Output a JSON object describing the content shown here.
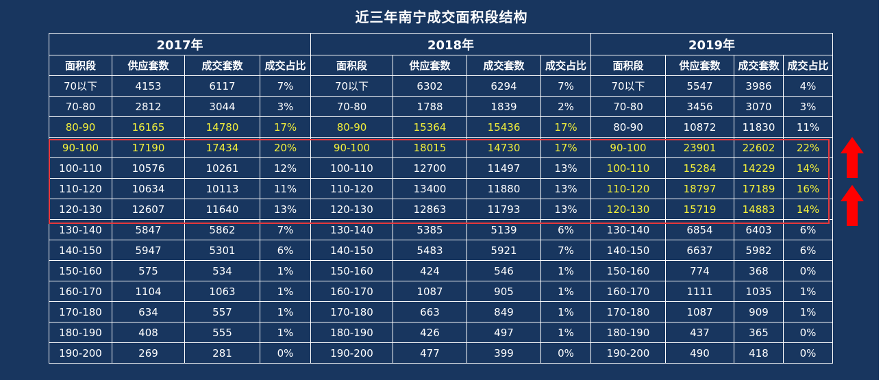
{
  "title": "近三年南宁成交面积段结构",
  "years": [
    "2017年",
    "2018年",
    "2019年"
  ],
  "columns": [
    "面积段",
    "供应套数",
    "成交套数",
    "成交占比"
  ],
  "highlight_color": "#f3f03a",
  "box_color": "#e8383b",
  "background_color": "#18365f",
  "rows": [
    {
      "y2017": [
        "70以下",
        "4153",
        "6117",
        "7%"
      ],
      "y2018": [
        "70以下",
        "6302",
        "6294",
        "7%"
      ],
      "y2019": [
        "70以下",
        "5547",
        "3986",
        "4%"
      ],
      "hl": [
        false,
        false,
        false
      ]
    },
    {
      "y2017": [
        "70-80",
        "2812",
        "3044",
        "3%"
      ],
      "y2018": [
        "70-80",
        "1788",
        "1839",
        "2%"
      ],
      "y2019": [
        "70-80",
        "3456",
        "3070",
        "3%"
      ],
      "hl": [
        false,
        false,
        false
      ]
    },
    {
      "y2017": [
        "80-90",
        "16165",
        "14780",
        "17%"
      ],
      "y2018": [
        "80-90",
        "15364",
        "15436",
        "17%"
      ],
      "y2019": [
        "80-90",
        "10872",
        "11830",
        "11%"
      ],
      "hl": [
        true,
        true,
        false
      ]
    },
    {
      "y2017": [
        "90-100",
        "17190",
        "17434",
        "20%"
      ],
      "y2018": [
        "90-100",
        "18015",
        "14730",
        "17%"
      ],
      "y2019": [
        "90-100",
        "23901",
        "22602",
        "22%"
      ],
      "hl": [
        true,
        true,
        true
      ]
    },
    {
      "y2017": [
        "100-110",
        "10576",
        "10261",
        "12%"
      ],
      "y2018": [
        "100-110",
        "12700",
        "11497",
        "13%"
      ],
      "y2019": [
        "100-110",
        "15284",
        "14229",
        "14%"
      ],
      "hl": [
        false,
        false,
        true
      ]
    },
    {
      "y2017": [
        "110-120",
        "10634",
        "10113",
        "11%"
      ],
      "y2018": [
        "110-120",
        "13400",
        "11880",
        "13%"
      ],
      "y2019": [
        "110-120",
        "18797",
        "17189",
        "16%"
      ],
      "hl": [
        false,
        false,
        true
      ]
    },
    {
      "y2017": [
        "120-130",
        "12607",
        "11640",
        "13%"
      ],
      "y2018": [
        "120-130",
        "12863",
        "11793",
        "13%"
      ],
      "y2019": [
        "120-130",
        "15719",
        "14883",
        "14%"
      ],
      "hl": [
        false,
        false,
        true
      ]
    },
    {
      "y2017": [
        "130-140",
        "5847",
        "5862",
        "7%"
      ],
      "y2018": [
        "130-140",
        "5385",
        "5139",
        "6%"
      ],
      "y2019": [
        "130-140",
        "6854",
        "6403",
        "6%"
      ],
      "hl": [
        false,
        false,
        false
      ]
    },
    {
      "y2017": [
        "140-150",
        "5947",
        "5301",
        "6%"
      ],
      "y2018": [
        "140-150",
        "5483",
        "5921",
        "7%"
      ],
      "y2019": [
        "140-150",
        "6637",
        "5982",
        "6%"
      ],
      "hl": [
        false,
        false,
        false
      ]
    },
    {
      "y2017": [
        "150-160",
        "575",
        "534",
        "1%"
      ],
      "y2018": [
        "150-160",
        "424",
        "546",
        "1%"
      ],
      "y2019": [
        "150-160",
        "774",
        "368",
        "0%"
      ],
      "hl": [
        false,
        false,
        false
      ]
    },
    {
      "y2017": [
        "160-170",
        "1104",
        "1063",
        "1%"
      ],
      "y2018": [
        "160-170",
        "1087",
        "905",
        "1%"
      ],
      "y2019": [
        "160-170",
        "1111",
        "1035",
        "1%"
      ],
      "hl": [
        false,
        false,
        false
      ]
    },
    {
      "y2017": [
        "170-180",
        "634",
        "557",
        "1%"
      ],
      "y2018": [
        "170-180",
        "663",
        "849",
        "1%"
      ],
      "y2019": [
        "170-180",
        "1087",
        "909",
        "1%"
      ],
      "hl": [
        false,
        false,
        false
      ]
    },
    {
      "y2017": [
        "180-190",
        "408",
        "555",
        "1%"
      ],
      "y2018": [
        "180-190",
        "426",
        "497",
        "1%"
      ],
      "y2019": [
        "180-190",
        "437",
        "365",
        "0%"
      ],
      "hl": [
        false,
        false,
        false
      ]
    },
    {
      "y2017": [
        "190-200",
        "269",
        "281",
        "0%"
      ],
      "y2018": [
        "190-200",
        "477",
        "399",
        "0%"
      ],
      "y2019": [
        "190-200",
        "490",
        "418",
        "0%"
      ],
      "hl": [
        false,
        false,
        false
      ]
    }
  ],
  "arrows": [
    {
      "icon": "up-arrow-icon",
      "color": "#ff0000"
    },
    {
      "icon": "up-arrow-icon",
      "color": "#ff0000"
    }
  ]
}
